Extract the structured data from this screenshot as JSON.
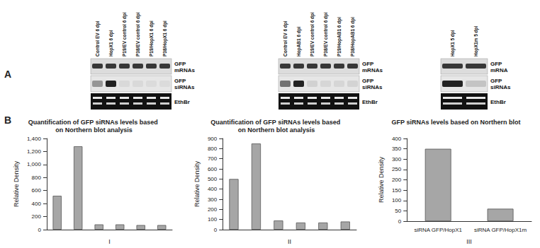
{
  "panel_labels": [
    "A",
    "B"
  ],
  "blots": [
    {
      "lanes": [
        "Control EV 6 dpi",
        "HopX1 6 dpi",
        "P19/EV control 6 dpi",
        "P38/EV control 6 dpi",
        "P19/HopX1 6 dpi",
        "P38/HopX1 6 dpi"
      ],
      "rows": [
        "GFP mRNAs",
        "GFP siRNAs",
        "EthBr"
      ]
    },
    {
      "lanes": [
        "Control EV 6 dpi",
        "HopAB1 6 dpi",
        "P19/EV control 6 dpi",
        "P38/EV control 6 dpi",
        "P19/HopAB1 6 dpi",
        "P38/HopAB1 6 dpi"
      ],
      "rows": [
        "GFP mRNAs",
        "GFP siRNAs",
        "EthBr"
      ]
    },
    {
      "lanes": [
        "HopX1 5 dpi",
        "HopX1m 5 dpi"
      ],
      "rows": [
        "GFP mRNA",
        "GFP siRNAs",
        "EthBr"
      ]
    }
  ],
  "chart_data": [
    {
      "type": "bar",
      "title": "Quantification of GFP siRNAs levels based on Northern blot analysis",
      "xlabel": "I",
      "ylabel": "Relative Density",
      "categories": [
        null,
        null,
        null,
        null,
        null,
        null
      ],
      "values": [
        520,
        1280,
        80,
        80,
        70,
        70
      ],
      "color": "#a6a6a6",
      "ylim": [
        0,
        1400
      ],
      "yticks": [
        0,
        200,
        400,
        600,
        800,
        1000,
        1200,
        1400
      ],
      "grid": false,
      "tick_labels": "y"
    },
    {
      "type": "bar",
      "title": "Quantification of GFP siRNAs levels based on Northern blot analysis",
      "xlabel": "II",
      "ylabel": "Relative Density",
      "categories": [
        null,
        null,
        null,
        null,
        null,
        null
      ],
      "values": [
        500,
        850,
        90,
        70,
        70,
        80
      ],
      "color": "#a6a6a6",
      "ylim": [
        0,
        900
      ],
      "yticks": [
        0,
        100,
        200,
        300,
        400,
        500,
        600,
        700,
        800,
        900
      ],
      "grid": false,
      "tick_labels": "y"
    },
    {
      "type": "bar",
      "title": "GFP siRNAs levels based on Northern blot",
      "xlabel": "III",
      "ylabel": "Relative Density",
      "categories": [
        "siRNA GFP/HopX1",
        "siRNA GFP/HopX1m"
      ],
      "values": [
        350,
        60
      ],
      "color": "#a6a6a6",
      "ylim": [
        0,
        400
      ],
      "yticks": [
        0,
        50,
        100,
        150,
        200,
        250,
        300,
        350,
        400
      ],
      "grid": false
    }
  ]
}
